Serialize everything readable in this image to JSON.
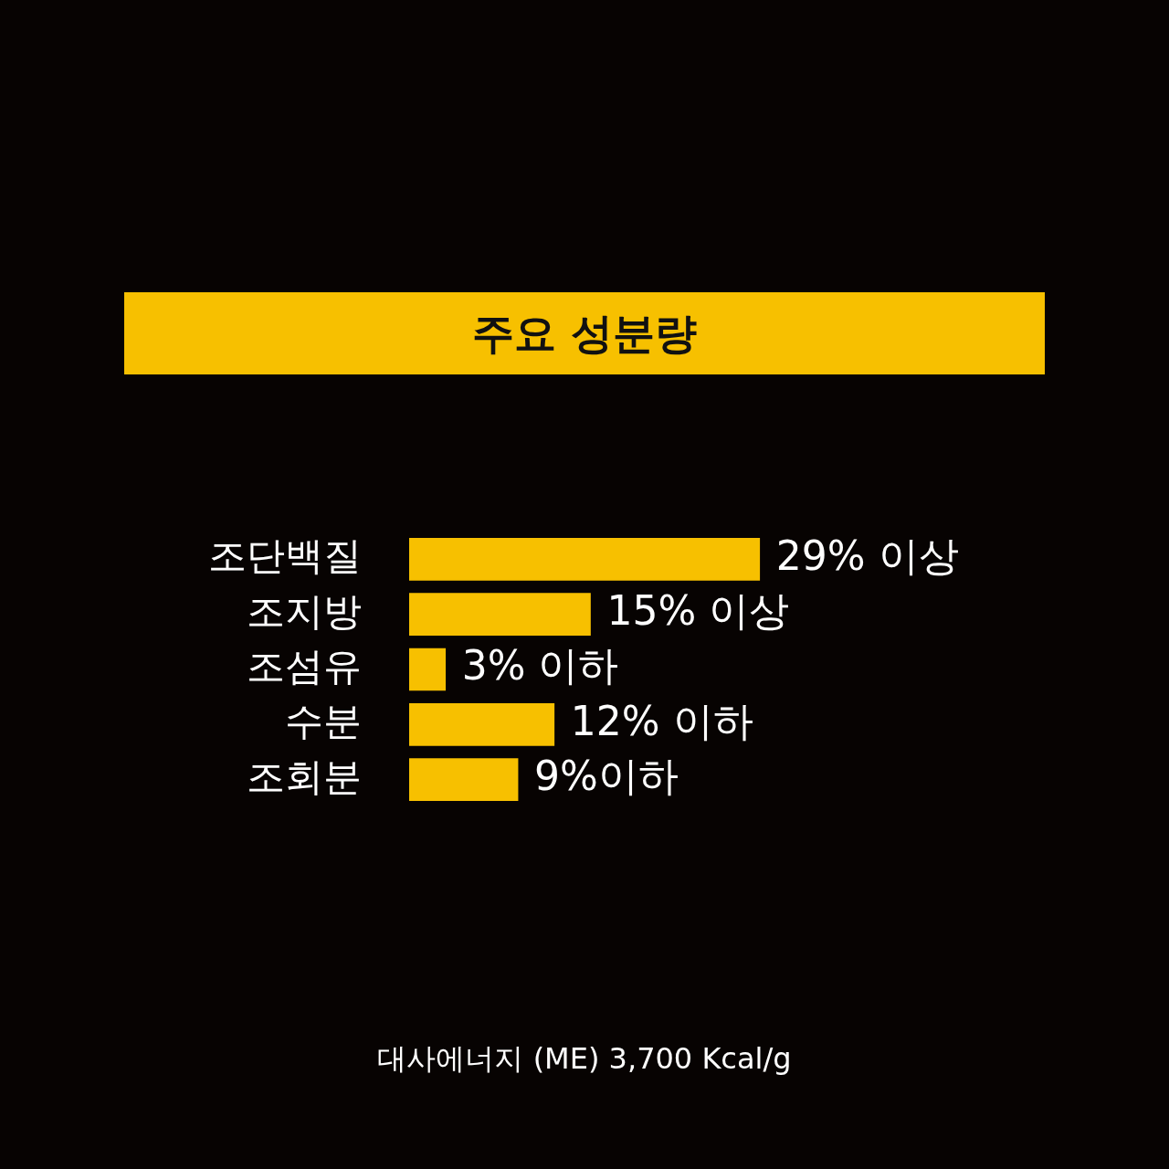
{
  "chart_data": {
    "type": "bar",
    "orientation": "horizontal",
    "title": "주요 성분량",
    "categories": [
      "조단백질",
      "조지방",
      "조섬유",
      "수분",
      "조회분"
    ],
    "values": [
      29,
      15,
      3,
      12,
      9
    ],
    "value_labels": [
      "29% 이상",
      "15% 이상",
      "3% 이하",
      "12% 이하",
      "9%이하"
    ],
    "color": "#f7c000",
    "annotations": [
      "대사에너지 (ME) 3,700 Kcal/g"
    ]
  }
}
